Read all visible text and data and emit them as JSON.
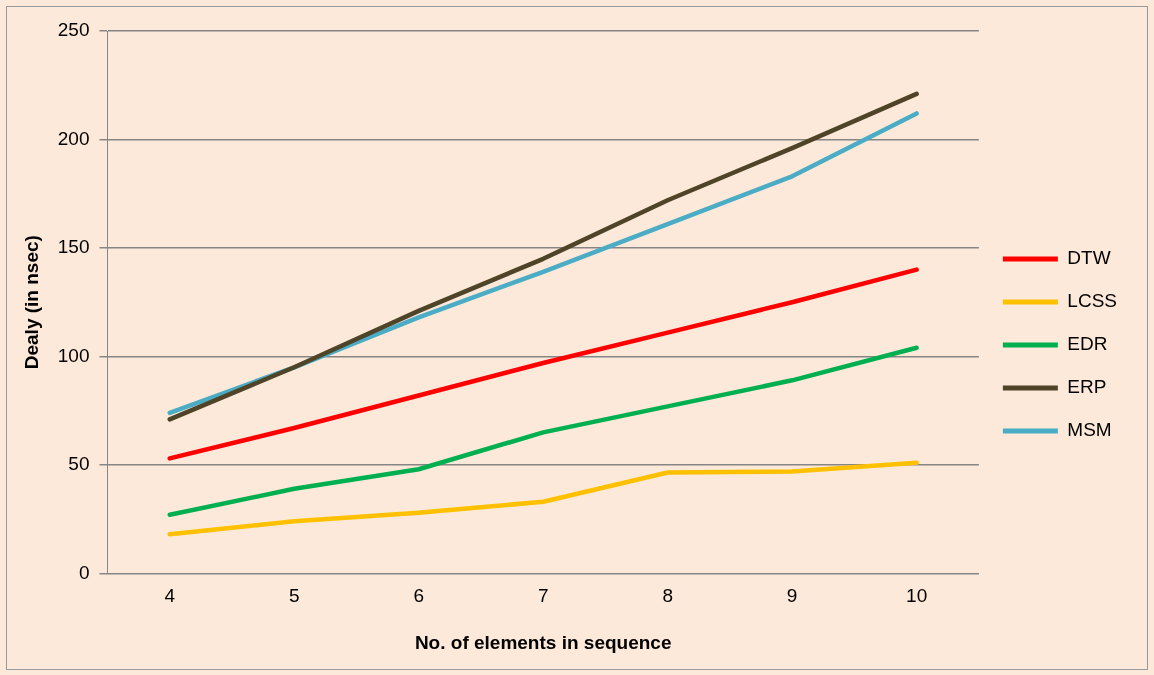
{
  "chart_data": {
    "type": "line",
    "xlabel": "No. of elements in sequence",
    "ylabel": "Dealy (in nsec)",
    "categories": [
      "4",
      "5",
      "6",
      "7",
      "8",
      "9",
      "10"
    ],
    "series": [
      {
        "name": "DTW",
        "color": "#ff0000",
        "values": [
          53,
          67,
          82,
          97,
          111,
          125,
          140
        ]
      },
      {
        "name": "LCSS",
        "color": "#ffc000",
        "values": [
          18,
          24,
          28,
          33,
          46.5,
          47,
          51
        ]
      },
      {
        "name": "EDR",
        "color": "#00b050",
        "values": [
          27,
          39,
          48,
          65,
          77,
          89,
          104
        ]
      },
      {
        "name": "ERP",
        "color": "#4f4328",
        "values": [
          71,
          95,
          121,
          145,
          172,
          196,
          221
        ]
      },
      {
        "name": "MSM",
        "color": "#4bacc6",
        "values": [
          74,
          95,
          118,
          139,
          161,
          183,
          212
        ]
      }
    ],
    "ylim": [
      0,
      250
    ],
    "yticks": [
      0,
      50,
      100,
      150,
      200,
      250
    ],
    "grid": "y",
    "legend": "right",
    "marker": "none"
  }
}
